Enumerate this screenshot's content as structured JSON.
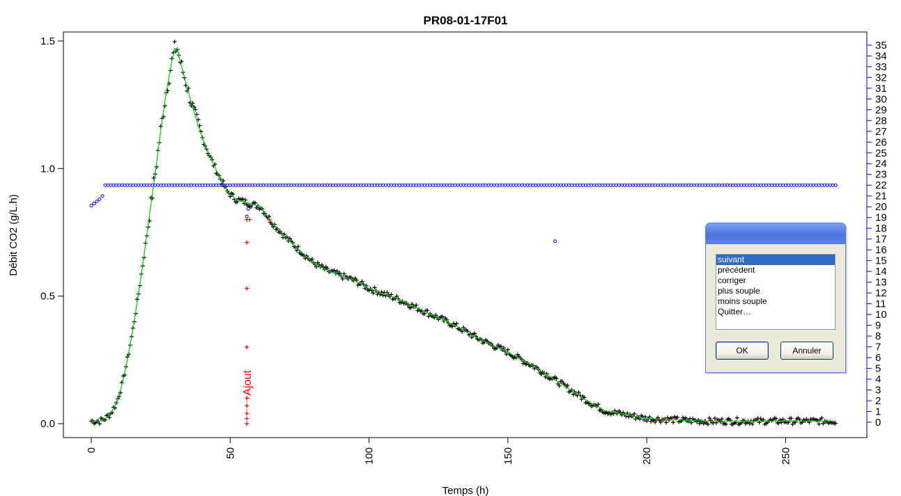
{
  "chart_data": {
    "type": "scatter",
    "title": "PR08-01-17F01",
    "xlabel": "Temps (h)",
    "ylabel": "Débit CO2 (g/L.h)",
    "xlim": [
      0,
      270
    ],
    "ylim": [
      0,
      1.5
    ],
    "x_ticks": [
      "0",
      "50",
      "100",
      "150",
      "200",
      "250"
    ],
    "y_ticks": [
      "0.0",
      "0.5",
      "1.0",
      "1.5"
    ],
    "y2_ticks": [
      "0",
      "1",
      "2",
      "3",
      "4",
      "5",
      "6",
      "7",
      "8",
      "9",
      "10",
      "11",
      "12",
      "13",
      "14",
      "15",
      "16",
      "17",
      "18",
      "19",
      "20",
      "21",
      "22",
      "23",
      "24",
      "25",
      "26",
      "27",
      "28",
      "29",
      "30",
      "31",
      "32",
      "33",
      "34",
      "35"
    ],
    "y2_color": "#0000ff",
    "series": [
      {
        "marker": "+",
        "color": "#000000",
        "x": [
          0,
          3,
          5,
          7,
          9,
          11,
          13,
          15,
          17,
          19,
          21,
          23,
          25,
          27,
          29,
          30,
          31,
          32,
          33,
          35,
          37,
          40,
          43,
          46,
          49,
          52,
          55,
          58,
          61,
          65,
          70,
          75,
          80,
          85,
          90,
          95,
          100,
          110,
          120,
          130,
          140,
          150,
          160,
          170,
          180,
          185,
          190,
          200,
          220,
          240,
          255,
          268
        ],
        "y": [
          0.01,
          0.01,
          0.02,
          0.04,
          0.08,
          0.15,
          0.25,
          0.37,
          0.51,
          0.66,
          0.82,
          0.98,
          1.15,
          1.3,
          1.42,
          1.47,
          1.47,
          1.42,
          1.38,
          1.3,
          1.22,
          1.12,
          1.04,
          0.97,
          0.91,
          0.88,
          0.87,
          0.86,
          0.85,
          0.79,
          0.73,
          0.68,
          0.63,
          0.6,
          0.58,
          0.56,
          0.53,
          0.49,
          0.44,
          0.39,
          0.33,
          0.28,
          0.22,
          0.15,
          0.08,
          0.05,
          0.04,
          0.02,
          0.01,
          0.01,
          0.01,
          0.01
        ]
      },
      {
        "marker": "line",
        "color": "#00cc00",
        "x": [
          0,
          3,
          5,
          7,
          9,
          11,
          13,
          15,
          17,
          19,
          21,
          23,
          25,
          27,
          29,
          30,
          31,
          32,
          33,
          35,
          37,
          40,
          43,
          46,
          49,
          52,
          55,
          58,
          61,
          65,
          70,
          75,
          80,
          85,
          90,
          95,
          100,
          110,
          120,
          130,
          140,
          150,
          160,
          170,
          180,
          185,
          190,
          200,
          220,
          240,
          255,
          268
        ],
        "y": [
          0.01,
          0.01,
          0.02,
          0.04,
          0.08,
          0.15,
          0.25,
          0.37,
          0.51,
          0.66,
          0.82,
          0.98,
          1.15,
          1.3,
          1.42,
          1.47,
          1.47,
          1.42,
          1.38,
          1.3,
          1.22,
          1.12,
          1.04,
          0.97,
          0.91,
          0.88,
          0.87,
          0.86,
          0.85,
          0.79,
          0.73,
          0.68,
          0.63,
          0.6,
          0.58,
          0.56,
          0.53,
          0.49,
          0.44,
          0.39,
          0.33,
          0.28,
          0.22,
          0.15,
          0.08,
          0.05,
          0.04,
          0.02,
          0.01,
          0.01,
          0.01,
          0.01
        ]
      },
      {
        "marker": "o",
        "color": "#0000ff",
        "axis": "right",
        "x": [
          0,
          1,
          2,
          3,
          4,
          5,
          10,
          20,
          30,
          40,
          50,
          56,
          56.2,
          56.5,
          60,
          70,
          80,
          100,
          120,
          140,
          160,
          167,
          180,
          200,
          220,
          240,
          260,
          268
        ],
        "y": [
          20.1,
          20.3,
          20.5,
          20.7,
          21.0,
          22.0,
          22.0,
          22.0,
          22.0,
          22.0,
          22.0,
          22.0,
          19.1,
          19.8,
          22.0,
          22.0,
          22.0,
          22.0,
          22.0,
          22.0,
          22.0,
          16.8,
          22.0,
          22.0,
          22.0,
          22.0,
          22.0,
          22.0
        ]
      },
      {
        "marker": "+",
        "color": "#ff0000",
        "x": [
          56.0,
          56.0,
          56.0,
          56.0,
          56.0,
          56.0,
          56.0,
          56.0,
          56.0,
          57.0,
          64.0
        ],
        "y": [
          0.0,
          0.02,
          0.04,
          0.07,
          0.1,
          0.3,
          0.53,
          0.71,
          0.8,
          0.8,
          0.8
        ]
      }
    ],
    "annotations": [
      {
        "text": "Ajout",
        "x": 56,
        "y": 0.11,
        "color": "#ff0000",
        "rotation": -90
      }
    ]
  },
  "dialog": {
    "items": [
      "suivant",
      "précédent",
      "corriger",
      "plus souple",
      "moins souple",
      "Quitter…"
    ],
    "selected_index": 0,
    "ok_label": "OK",
    "cancel_label": "Annuler"
  }
}
